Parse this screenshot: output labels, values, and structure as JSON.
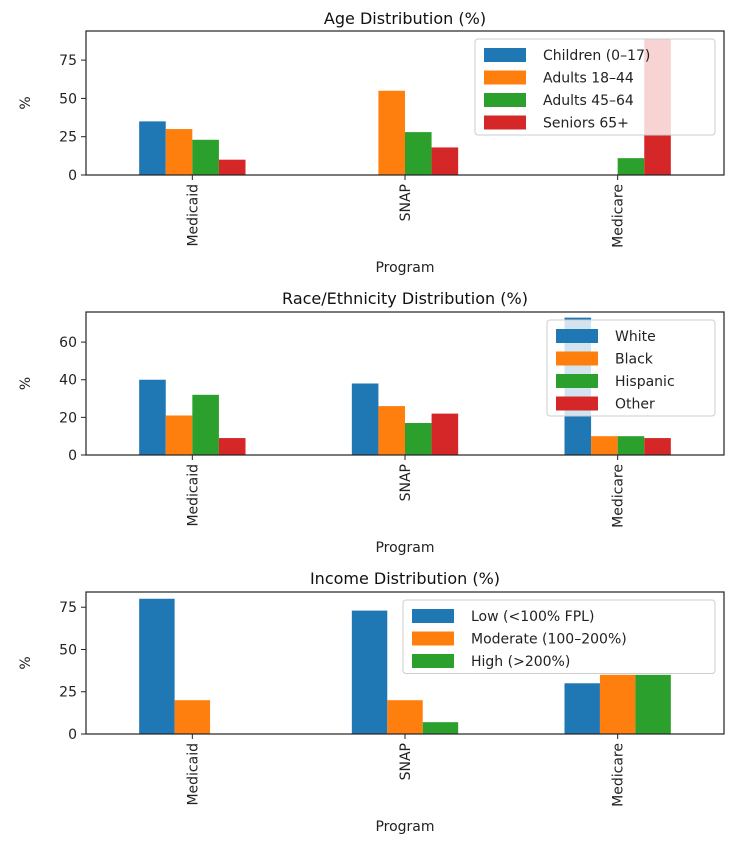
{
  "chart_data": [
    {
      "type": "bar",
      "title": "Age Distribution (%)",
      "xlabel": "Program",
      "ylabel": "%",
      "categories": [
        "Medicaid",
        "SNAP",
        "Medicare"
      ],
      "ylim": [
        0,
        94
      ],
      "yticks": [
        "0",
        "25",
        "50",
        "75"
      ],
      "grid": false,
      "legend_position": "top-right",
      "series": [
        {
          "name": "Children (0–17)",
          "color": "#1f77b4",
          "values": [
            35,
            0,
            0
          ]
        },
        {
          "name": "Adults 18–44",
          "color": "#ff7f0e",
          "values": [
            30,
            55,
            0
          ]
        },
        {
          "name": "Adults 45–64",
          "color": "#2ca02c",
          "values": [
            23,
            28,
            11
          ]
        },
        {
          "name": "Seniors 65+",
          "color": "#d62728",
          "values": [
            10,
            18,
            89
          ]
        }
      ]
    },
    {
      "type": "bar",
      "title": "Race/Ethnicity Distribution (%)",
      "xlabel": "Program",
      "ylabel": "%",
      "categories": [
        "Medicaid",
        "SNAP",
        "Medicare"
      ],
      "ylim": [
        0,
        76
      ],
      "yticks": [
        "0",
        "20",
        "40",
        "60"
      ],
      "grid": false,
      "legend_position": "top-right",
      "series": [
        {
          "name": "White",
          "color": "#1f77b4",
          "values": [
            40,
            38,
            73
          ]
        },
        {
          "name": "Black",
          "color": "#ff7f0e",
          "values": [
            21,
            26,
            10
          ]
        },
        {
          "name": "Hispanic",
          "color": "#2ca02c",
          "values": [
            32,
            17,
            10
          ]
        },
        {
          "name": "Other",
          "color": "#d62728",
          "values": [
            9,
            22,
            9
          ]
        }
      ]
    },
    {
      "type": "bar",
      "title": "Income Distribution (%)",
      "xlabel": "Program",
      "ylabel": "%",
      "categories": [
        "Medicaid",
        "SNAP",
        "Medicare"
      ],
      "ylim": [
        0,
        84
      ],
      "yticks": [
        "0",
        "25",
        "50",
        "75"
      ],
      "grid": false,
      "legend_position": "top-right",
      "series": [
        {
          "name": "Low (<100% FPL)",
          "color": "#1f77b4",
          "values": [
            80,
            73,
            30
          ]
        },
        {
          "name": "Moderate (100–200%)",
          "color": "#ff7f0e",
          "values": [
            20,
            20,
            35
          ]
        },
        {
          "name": "High (>200%)",
          "color": "#2ca02c",
          "values": [
            0,
            7,
            35
          ]
        }
      ]
    }
  ]
}
